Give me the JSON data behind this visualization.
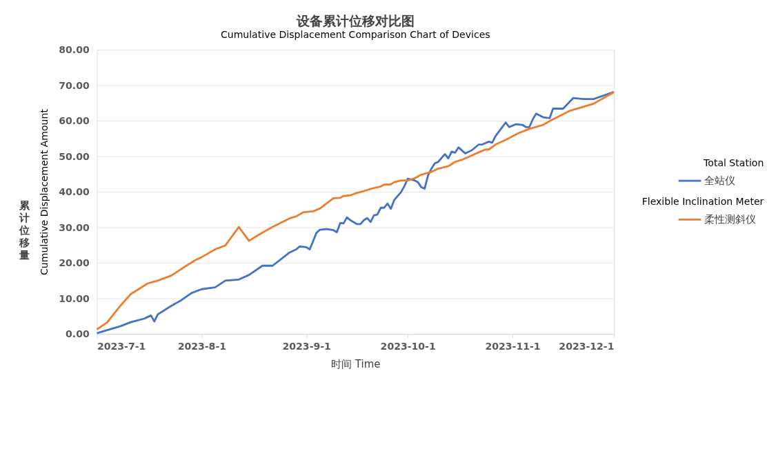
{
  "chart_data": {
    "type": "line",
    "title": "设备累计位移对比图",
    "subtitle": "Cumulative Displacement Comparison Chart of Devices",
    "xlabel": "时间   Time",
    "ylabel": "Cumulative Displacement Amount",
    "annotations": [
      "累计位移量"
    ],
    "xlim": [
      "2023-07-01",
      "2023-12-01"
    ],
    "xticks": [
      {
        "value": "2023-07-01",
        "label": "2023-7-1"
      },
      {
        "value": "2023-08-01",
        "label": "2023-8-1"
      },
      {
        "value": "2023-09-01",
        "label": "2023-9-1"
      },
      {
        "value": "2023-10-01",
        "label": "2023-10-1"
      },
      {
        "value": "2023-11-01",
        "label": "2023-11-1"
      },
      {
        "value": "2023-12-01",
        "label": "2023-12-1"
      }
    ],
    "ylim": [
      0,
      80
    ],
    "yticks": [
      {
        "value": 0,
        "label": "0.00"
      },
      {
        "value": 10,
        "label": "10.00"
      },
      {
        "value": 20,
        "label": "20.00"
      },
      {
        "value": 30,
        "label": "30.00"
      },
      {
        "value": 40,
        "label": "40.00"
      },
      {
        "value": 50,
        "label": "50.00"
      },
      {
        "value": 60,
        "label": "60.00"
      },
      {
        "value": 70,
        "label": "70.00"
      },
      {
        "value": 80,
        "label": "80.00"
      }
    ],
    "grid": "y",
    "legend": "right",
    "marker": "none",
    "line_style": "solid",
    "series": [
      {
        "name": "Total Station\n全站仪",
        "color": "#4472c4",
        "x": [
          "2023-07-01",
          "2023-07-08",
          "2023-07-11",
          "2023-07-15",
          "2023-07-17",
          "2023-07-18",
          "2023-07-19",
          "2023-07-23",
          "2023-07-26",
          "2023-07-29",
          "2023-08-01",
          "2023-08-05",
          "2023-08-08",
          "2023-08-12",
          "2023-08-15",
          "2023-08-19",
          "2023-08-22",
          "2023-08-27",
          "2023-08-29",
          "2023-08-30",
          "2023-09-01",
          "2023-09-02",
          "2023-09-04",
          "2023-09-05",
          "2023-09-07",
          "2023-09-09",
          "2023-09-10",
          "2023-09-11",
          "2023-09-12",
          "2023-09-13",
          "2023-09-14",
          "2023-09-16",
          "2023-09-17",
          "2023-09-18",
          "2023-09-19",
          "2023-09-20",
          "2023-09-21",
          "2023-09-22",
          "2023-09-23",
          "2023-09-24",
          "2023-09-25",
          "2023-09-26",
          "2023-09-27",
          "2023-09-29",
          "2023-09-30",
          "2023-10-01",
          "2023-10-03",
          "2023-10-04",
          "2023-10-05",
          "2023-10-06",
          "2023-10-07",
          "2023-10-08",
          "2023-10-09",
          "2023-10-10",
          "2023-10-12",
          "2023-10-13",
          "2023-10-14",
          "2023-10-15",
          "2023-10-16",
          "2023-10-18",
          "2023-10-20",
          "2023-10-22",
          "2023-10-23",
          "2023-10-25",
          "2023-10-26",
          "2023-10-27",
          "2023-10-30",
          "2023-10-31",
          "2023-11-02",
          "2023-11-04",
          "2023-11-05",
          "2023-11-06",
          "2023-11-07",
          "2023-11-08",
          "2023-11-10",
          "2023-11-12",
          "2023-11-13",
          "2023-11-16",
          "2023-11-19",
          "2023-11-22",
          "2023-11-25",
          "2023-12-01"
        ],
        "values": [
          0.2,
          2.2,
          3.3,
          4.3,
          5.2,
          3.5,
          5.5,
          7.9,
          9.5,
          11.5,
          12.6,
          13.1,
          15.0,
          15.3,
          16.6,
          19.2,
          19.2,
          22.9,
          23.8,
          24.6,
          24.4,
          23.8,
          28.5,
          29.3,
          29.5,
          29.2,
          28.6,
          31.2,
          31.1,
          32.8,
          32.0,
          30.9,
          30.9,
          32.0,
          32.6,
          31.5,
          33.4,
          33.6,
          35.5,
          35.5,
          36.7,
          35.2,
          37.7,
          39.9,
          41.6,
          43.7,
          43.2,
          42.7,
          41.3,
          40.9,
          44.6,
          46.5,
          48.0,
          48.4,
          50.6,
          49.4,
          51.3,
          51.0,
          52.5,
          50.8,
          51.7,
          53.3,
          53.3,
          54.1,
          53.8,
          55.7,
          59.5,
          58.2,
          59.0,
          58.8,
          58.2,
          58.2,
          60.4,
          62.0,
          61.0,
          60.7,
          63.4,
          63.4,
          66.4,
          66.1,
          66.1,
          68.1
        ]
      },
      {
        "name": "Flexible Inclination Meter\n柔性测斜仪",
        "color": "#ed7d31",
        "x": [
          "2023-07-01",
          "2023-07-04",
          "2023-07-08",
          "2023-07-11",
          "2023-07-16",
          "2023-07-19",
          "2023-07-23",
          "2023-07-27",
          "2023-07-30",
          "2023-08-01",
          "2023-08-05",
          "2023-08-08",
          "2023-08-12",
          "2023-08-15",
          "2023-08-19",
          "2023-08-22",
          "2023-08-27",
          "2023-08-29",
          "2023-08-31",
          "2023-09-03",
          "2023-09-05",
          "2023-09-09",
          "2023-09-11",
          "2023-09-12",
          "2023-09-14",
          "2023-09-16",
          "2023-09-18",
          "2023-09-20",
          "2023-09-23",
          "2023-09-24",
          "2023-09-26",
          "2023-09-27",
          "2023-09-29",
          "2023-10-01",
          "2023-10-03",
          "2023-10-05",
          "2023-10-08",
          "2023-10-10",
          "2023-10-13",
          "2023-10-15",
          "2023-10-17",
          "2023-10-19",
          "2023-10-22",
          "2023-10-24",
          "2023-10-25",
          "2023-10-27",
          "2023-10-30",
          "2023-11-03",
          "2023-11-06",
          "2023-11-10",
          "2023-11-12",
          "2023-11-18",
          "2023-11-25",
          "2023-12-01"
        ],
        "values": [
          1.3,
          3.2,
          8.0,
          11.2,
          14.2,
          15.0,
          16.4,
          18.9,
          20.7,
          21.6,
          23.8,
          24.9,
          30.1,
          26.2,
          28.5,
          30.1,
          32.5,
          33.1,
          34.2,
          34.5,
          35.3,
          38.2,
          38.3,
          38.8,
          39.0,
          39.7,
          40.2,
          40.8,
          41.5,
          42.0,
          42.1,
          42.7,
          43.2,
          43.2,
          43.8,
          44.8,
          45.6,
          46.5,
          47.2,
          48.4,
          49.0,
          49.8,
          51.1,
          51.9,
          51.9,
          53.3,
          54.6,
          56.6,
          57.7,
          58.8,
          59.9,
          62.8,
          64.8,
          68.0
        ]
      }
    ]
  }
}
